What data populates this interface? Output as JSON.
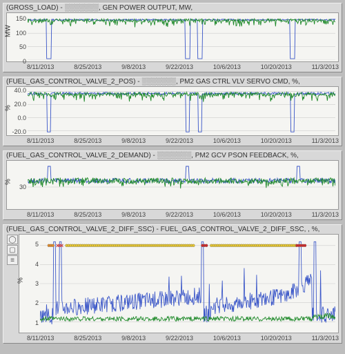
{
  "dates": [
    "8/11/2013",
    "8/25/2013",
    "9/8/2013",
    "9/22/2013",
    "10/6/2013",
    "10/20/2013",
    "11/3/2013"
  ],
  "colors": {
    "bg": "#bdbdbd",
    "plot_bg": "#f5f5f2",
    "grid": "#cccccc",
    "blue": "#3a56c8",
    "green": "#1f8a2a",
    "marker_yellow": "#e6c631",
    "marker_red": "#cc2a2a",
    "marker_orange": "#e08a2a"
  },
  "panels": [
    {
      "id": "p1",
      "title": "(GROSS_LOAD) - ░░░░░░░, GEN POWER OUTPUT, MW,",
      "ylabel": "MW",
      "height": 70,
      "yticks": [
        {
          "v": 0,
          "label": "0"
        },
        {
          "v": 50,
          "label": "50"
        },
        {
          "v": 100,
          "label": "100"
        },
        {
          "v": 150,
          "label": "150"
        }
      ],
      "ylim": [
        0,
        170
      ],
      "series": [
        {
          "color_key": "blue",
          "base": 150,
          "noise_amp": 3,
          "spike_amp": 8,
          "dips": [
            0.07,
            0.52,
            0.56,
            0.86
          ],
          "dip_to": 5,
          "dip_w": 0.008
        },
        {
          "color_key": "green",
          "base": 148,
          "noise_amp": 6,
          "spike_amp": 20,
          "spike_freq": 0.25,
          "dips": [],
          "dip_to": 0,
          "dip_w": 0
        }
      ],
      "markers": []
    },
    {
      "id": "p2",
      "title": "(FUEL_GAS_CONTROL_VALVE_2_POS) - ░░░░░░░, PM2 GAS CTRL VLV SERVO CMD, %,",
      "ylabel": "%",
      "height": 70,
      "yticks": [
        {
          "v": -20,
          "label": "-20.0"
        },
        {
          "v": 0,
          "label": "0.0"
        },
        {
          "v": 20,
          "label": "20.0"
        },
        {
          "v": 40,
          "label": "40.0"
        }
      ],
      "ylim": [
        -25,
        45
      ],
      "series": [
        {
          "color_key": "blue",
          "base": 37,
          "noise_amp": 2,
          "spike_amp": 5,
          "dips": [
            0.07,
            0.52,
            0.56,
            0.86
          ],
          "dip_to": -22,
          "dip_w": 0.006
        },
        {
          "color_key": "green",
          "base": 36,
          "noise_amp": 3,
          "spike_amp": 10,
          "spike_freq": 0.22,
          "dips": [],
          "dip_to": 0,
          "dip_w": 0
        }
      ],
      "markers": []
    },
    {
      "id": "p3",
      "title": "(FUEL_GAS_CONTROL_VALVE_2_DEMAND) - ░░░░░░░, PM2 GCV PSON FEEDBACK, %,",
      "ylabel": "%",
      "height": 70,
      "yticks": [
        {
          "v": 30,
          "label": "30"
        }
      ],
      "ylim": [
        20,
        42
      ],
      "series": [
        {
          "color_key": "blue",
          "base": 33,
          "noise_amp": 1.2,
          "spike_amp": 3,
          "dips": [
            0.07,
            0.52,
            0.88
          ],
          "dip_to": 40,
          "dip_w": 0.005
        },
        {
          "color_key": "green",
          "base": 33,
          "noise_amp": 1.5,
          "spike_amp": 3,
          "spike_freq": 0.15,
          "dips": [],
          "dip_to": 0,
          "dip_w": 0
        }
      ],
      "markers": []
    },
    {
      "id": "p4",
      "title": "(FUEL_GAS_CONTROL_VALVE_2_DIFF_SSC) - FUEL_GAS_CONTROL_VALVE_2_DIFF_SSC, , %,",
      "ylabel": "%",
      "height": 142,
      "yticks": [
        {
          "v": 1,
          "label": "1"
        },
        {
          "v": 2,
          "label": "2"
        },
        {
          "v": 3,
          "label": "3"
        },
        {
          "v": 4,
          "label": "4"
        },
        {
          "v": 5,
          "label": "5"
        }
      ],
      "ylim": [
        0.5,
        5.5
      ],
      "series": [
        {
          "color_key": "blue",
          "type": "diff_blue"
        },
        {
          "color_key": "green",
          "type": "diff_green"
        }
      ],
      "markers": {
        "y": 5.0,
        "ranges": [
          {
            "x0": 0.03,
            "x1": 0.045,
            "c": "marker_orange"
          },
          {
            "x0": 0.06,
            "x1": 0.075,
            "c": "marker_red",
            "style": "x"
          },
          {
            "x0": 0.09,
            "x1": 0.52,
            "c": "marker_yellow"
          },
          {
            "x0": 0.55,
            "x1": 0.57,
            "c": "marker_red"
          },
          {
            "x0": 0.58,
            "x1": 0.87,
            "c": "marker_yellow"
          },
          {
            "x0": 0.87,
            "x1": 0.9,
            "c": "marker_red"
          }
        ]
      },
      "sidebar": true
    }
  ]
}
